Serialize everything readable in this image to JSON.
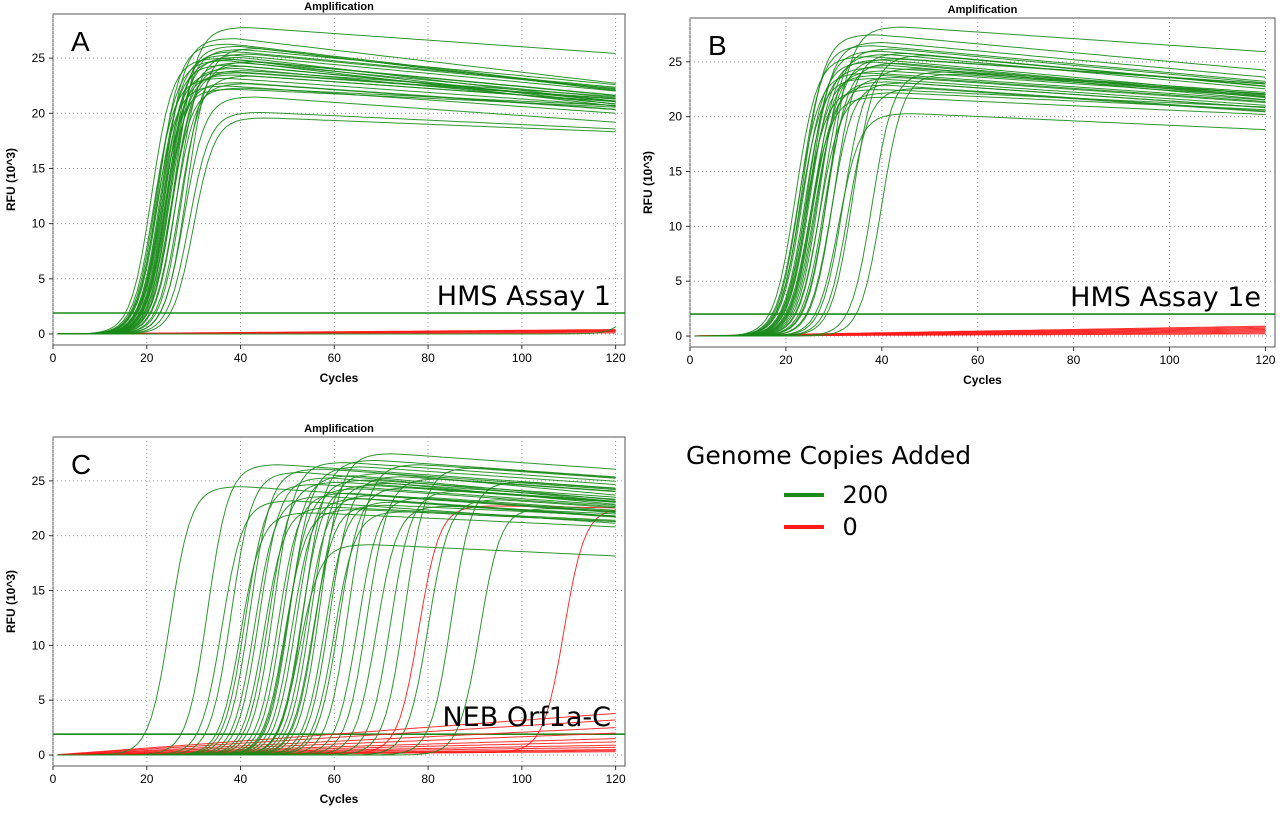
{
  "legend": {
    "title": "Genome Copies Added",
    "entries": [
      {
        "label": "200",
        "color": "#1a8a1a"
      },
      {
        "label": "0",
        "color": "#ff1a1a"
      }
    ]
  },
  "chart_data": [
    {
      "type": "line",
      "panel_letter": "A",
      "title": "Amplification",
      "annotation": "HMS Assay 1",
      "xlabel": "Cycles",
      "ylabel": "RFU (10^3)",
      "xlim": [
        0,
        122
      ],
      "ylim": [
        -1,
        29
      ],
      "xticks": [
        0,
        20,
        40,
        60,
        80,
        100,
        120
      ],
      "yticks": [
        0,
        5,
        10,
        15,
        20,
        25
      ],
      "grid": true,
      "threshold": 1.9,
      "threshold_color": "#1a8a1a",
      "series_groups": [
        {
          "legend_label": "200",
          "color": "#1a8a1a",
          "ct": [
            16,
            16.5,
            17,
            17,
            17.5,
            17.5,
            18,
            18,
            18,
            18.5,
            18.5,
            18.5,
            19,
            19,
            19,
            19.5,
            19.5,
            19.5,
            20,
            20,
            20,
            20.5,
            20.5,
            21,
            21,
            21.5,
            22,
            22.5,
            23,
            23.5,
            24,
            25
          ],
          "plateau": [
            25,
            23.2,
            24.8,
            22.5,
            26.3,
            24.4,
            25.3,
            23.8,
            22.2,
            24.9,
            26.8,
            23.5,
            25.6,
            24.1,
            22.8,
            25.1,
            23.7,
            26.1,
            24.6,
            22.3,
            25.8,
            23.9,
            24.3,
            27.8,
            22.7,
            25.4,
            23.4,
            24.7,
            21.5,
            25.9,
            20.1,
            19.6
          ],
          "decay": [
            0.04,
            0.03,
            0.05,
            0.03,
            0.05,
            0.04,
            0.04,
            0.03,
            0.02,
            0.05,
            0.05,
            0.03,
            0.04,
            0.04,
            0.03,
            0.05,
            0.03,
            0.05,
            0.04,
            0.02,
            0.04,
            0.03,
            0.04,
            0.03,
            0.03,
            0.04,
            0.03,
            0.04,
            0.03,
            0.05,
            0.02,
            0.017
          ]
        },
        {
          "legend_label": "200",
          "color": "#1a8a1a",
          "ct": [
            121
          ],
          "plateau": [
            10
          ],
          "decay": [
            0
          ]
        },
        {
          "legend_label": "0",
          "color": "#ff1a1a",
          "ct": [
            300,
            300,
            300,
            300,
            300,
            300
          ],
          "plateau": [
            0,
            0,
            0,
            0,
            0,
            0
          ],
          "decay": [
            0,
            0,
            0,
            0,
            0,
            0
          ],
          "baseline_end": [
            0.1,
            0.2,
            0.25,
            0.3,
            0.35,
            0.4
          ]
        }
      ]
    },
    {
      "type": "line",
      "panel_letter": "B",
      "title": "Amplification",
      "annotation": "HMS Assay 1e",
      "xlabel": "Cycles",
      "ylabel": "RFU (10^3)",
      "xlim": [
        0,
        122
      ],
      "ylim": [
        -1,
        29
      ],
      "xticks": [
        0,
        20,
        40,
        60,
        80,
        100,
        120
      ],
      "yticks": [
        0,
        5,
        10,
        15,
        20,
        25
      ],
      "grid": true,
      "threshold": 2.0,
      "threshold_color": "#1a8a1a",
      "series_groups": [
        {
          "legend_label": "200",
          "color": "#1a8a1a",
          "ct": [
            17,
            17.5,
            18,
            18,
            18.5,
            18.5,
            19,
            19,
            19.5,
            19.5,
            20,
            20,
            20,
            20.5,
            20.5,
            21,
            21,
            21.5,
            22,
            22,
            22.5,
            23,
            23.5,
            24,
            24.5,
            25,
            26,
            27,
            28,
            29,
            33,
            35
          ],
          "plateau": [
            25.5,
            24,
            26.5,
            23.5,
            25,
            27.5,
            24.5,
            22.5,
            26,
            23.8,
            25.2,
            21.8,
            26.8,
            24.2,
            22.9,
            25.7,
            23.2,
            24.7,
            26.2,
            22.2,
            25.3,
            23.6,
            24.9,
            28.2,
            23.1,
            25.8,
            20.3,
            24.4,
            22.6,
            25.6,
            24.1,
            23.9
          ],
          "decay": [
            0.03,
            0.03,
            0.04,
            0.03,
            0.04,
            0.04,
            0.03,
            0.02,
            0.04,
            0.03,
            0.04,
            0.02,
            0.04,
            0.03,
            0.03,
            0.04,
            0.03,
            0.04,
            0.04,
            0.02,
            0.03,
            0.03,
            0.04,
            0.03,
            0.03,
            0.04,
            0.02,
            0.03,
            0.03,
            0.04,
            0.03,
            0.03
          ]
        },
        {
          "legend_label": "0",
          "color": "#ff1a1a",
          "ct": [
            300,
            300,
            300,
            300,
            300,
            300,
            300,
            300
          ],
          "plateau": [
            0,
            0,
            0,
            0,
            0,
            0,
            0,
            0
          ],
          "decay": [
            0,
            0,
            0,
            0,
            0,
            0,
            0,
            0
          ],
          "baseline_end": [
            0.2,
            0.3,
            0.4,
            0.5,
            0.6,
            0.7,
            0.8,
            0.9
          ]
        }
      ]
    },
    {
      "type": "line",
      "panel_letter": "C",
      "title": "Amplification",
      "annotation": "NEB Orf1a-C",
      "xlabel": "Cycles",
      "ylabel": "RFU (10^3)",
      "xlim": [
        0,
        122
      ],
      "ylim": [
        -1,
        29
      ],
      "xticks": [
        0,
        20,
        40,
        60,
        80,
        100,
        120
      ],
      "yticks": [
        0,
        5,
        10,
        15,
        20,
        25
      ],
      "grid": true,
      "threshold": 1.9,
      "threshold_color": "#1a8a1a",
      "series_groups": [
        {
          "legend_label": "200",
          "color": "#1a8a1a",
          "ct": [
            20,
            28,
            31,
            33,
            35,
            36,
            37,
            38,
            39,
            40,
            41,
            42,
            43,
            44,
            44.5,
            45,
            45.5,
            46,
            47,
            47.5,
            48,
            48.5,
            49,
            50,
            50.5,
            51,
            52,
            53,
            54,
            55,
            56,
            58,
            60,
            62,
            64,
            67,
            70,
            75,
            80,
            86
          ],
          "plateau": [
            24.5,
            26.5,
            23.2,
            25.8,
            22.1,
            24.7,
            26.1,
            23.6,
            25.3,
            22.6,
            24.9,
            26.7,
            23.9,
            25.5,
            22.4,
            24.3,
            26.3,
            23.4,
            25.1,
            19.2,
            24.6,
            26.9,
            23.7,
            25.7,
            22.8,
            24.8,
            27.5,
            23.1,
            25.4,
            22.2,
            24.4,
            26.5,
            23.5,
            25.2,
            22.7,
            24.1,
            26.2,
            23.3,
            24.9,
            22.5
          ],
          "decay": [
            0.03,
            0.03,
            0.03,
            0.04,
            0.02,
            0.03,
            0.03,
            0.03,
            0.04,
            0.02,
            0.03,
            0.03,
            0.03,
            0.04,
            0.02,
            0.03,
            0.03,
            0.03,
            0.03,
            0.02,
            0.03,
            0.03,
            0.03,
            0.04,
            0.02,
            0.03,
            0.03,
            0.03,
            0.03,
            0.02,
            0.03,
            0.03,
            0.03,
            0.03,
            0.02,
            0.03,
            0.03,
            0.03,
            0.03,
            0.02
          ]
        },
        {
          "legend_label": "0",
          "color": "#ff1a1a",
          "ct": [
            73,
            104,
            300,
            300,
            300,
            300,
            300,
            300,
            300,
            300,
            300,
            300,
            300
          ],
          "plateau": [
            22.5,
            22.2,
            0,
            0,
            0,
            0,
            0,
            0,
            0,
            0,
            0,
            0,
            0
          ],
          "decay": [
            0.01,
            0,
            0,
            0,
            0,
            0,
            0,
            0,
            0,
            0,
            0,
            0,
            0
          ],
          "baseline_end": [
            0.3,
            0.3,
            3.8,
            3.2,
            2.5,
            2.0,
            1.5,
            1.2,
            0.9,
            0.7,
            0.5,
            0.4,
            0.3
          ]
        }
      ]
    }
  ]
}
